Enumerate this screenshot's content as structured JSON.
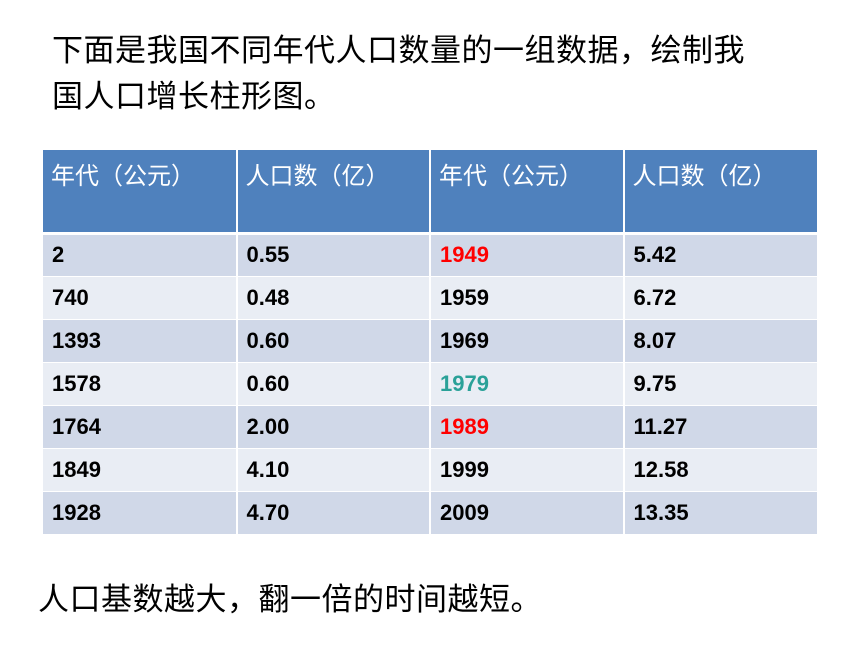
{
  "intro": {
    "line1": "下面是我国不同年代人口数量的一组数据，绘制我",
    "line2": "国人口增长柱形图。"
  },
  "table": {
    "headers": [
      "年代（公元）",
      "人口数（亿）",
      "年代（公元）",
      "人口数（亿）"
    ],
    "rows": [
      [
        "2",
        "0.55",
        "1949",
        "5.42"
      ],
      [
        "740",
        "0.48",
        "1959",
        "6.72"
      ],
      [
        "1393",
        "0.60",
        "1969",
        "8.07"
      ],
      [
        "1578",
        "0.60",
        "1979",
        "9.75"
      ],
      [
        "1764",
        "2.00",
        "1989",
        "11.27"
      ],
      [
        "1849",
        "4.10",
        "1999",
        "12.58"
      ],
      [
        "1928",
        "4.70",
        "2009",
        "13.35"
      ]
    ]
  },
  "colors": {
    "header_bg": "#4f81bd",
    "row_odd_bg": "#d0d8e8",
    "row_even_bg": "#e9edf4",
    "highlight_red": "#ff0000",
    "highlight_teal": "#2aa198"
  },
  "note": "人口基数越大，翻一倍的时间越短。"
}
